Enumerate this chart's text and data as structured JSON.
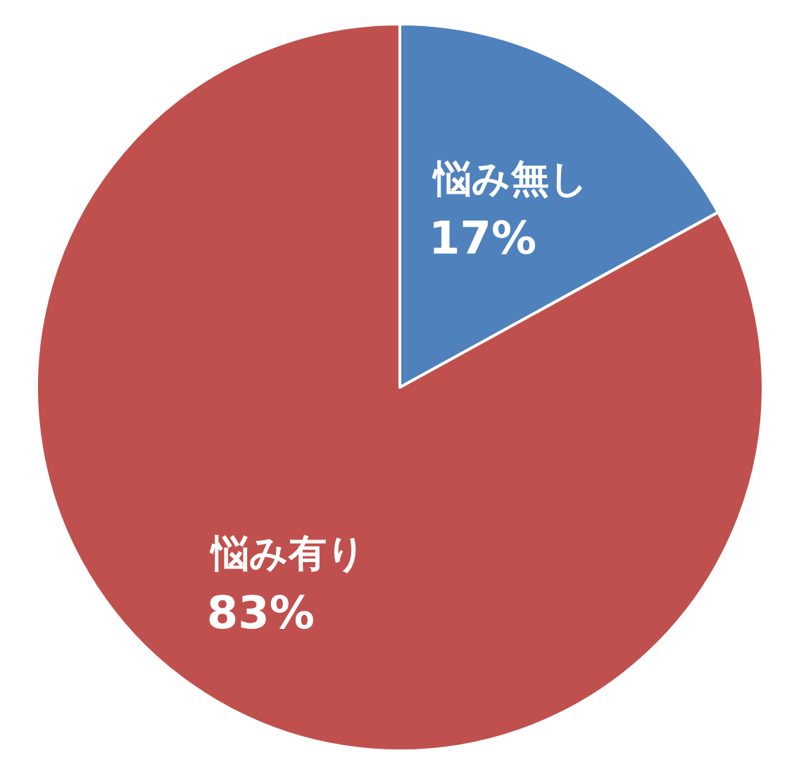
{
  "chart_data": {
    "type": "pie",
    "categories": [
      "悩み無し",
      "悩み有り"
    ],
    "values": [
      17,
      83
    ],
    "value_labels": [
      "17%",
      "83%"
    ],
    "colors": [
      "#4f81bd",
      "#c0504d"
    ]
  }
}
